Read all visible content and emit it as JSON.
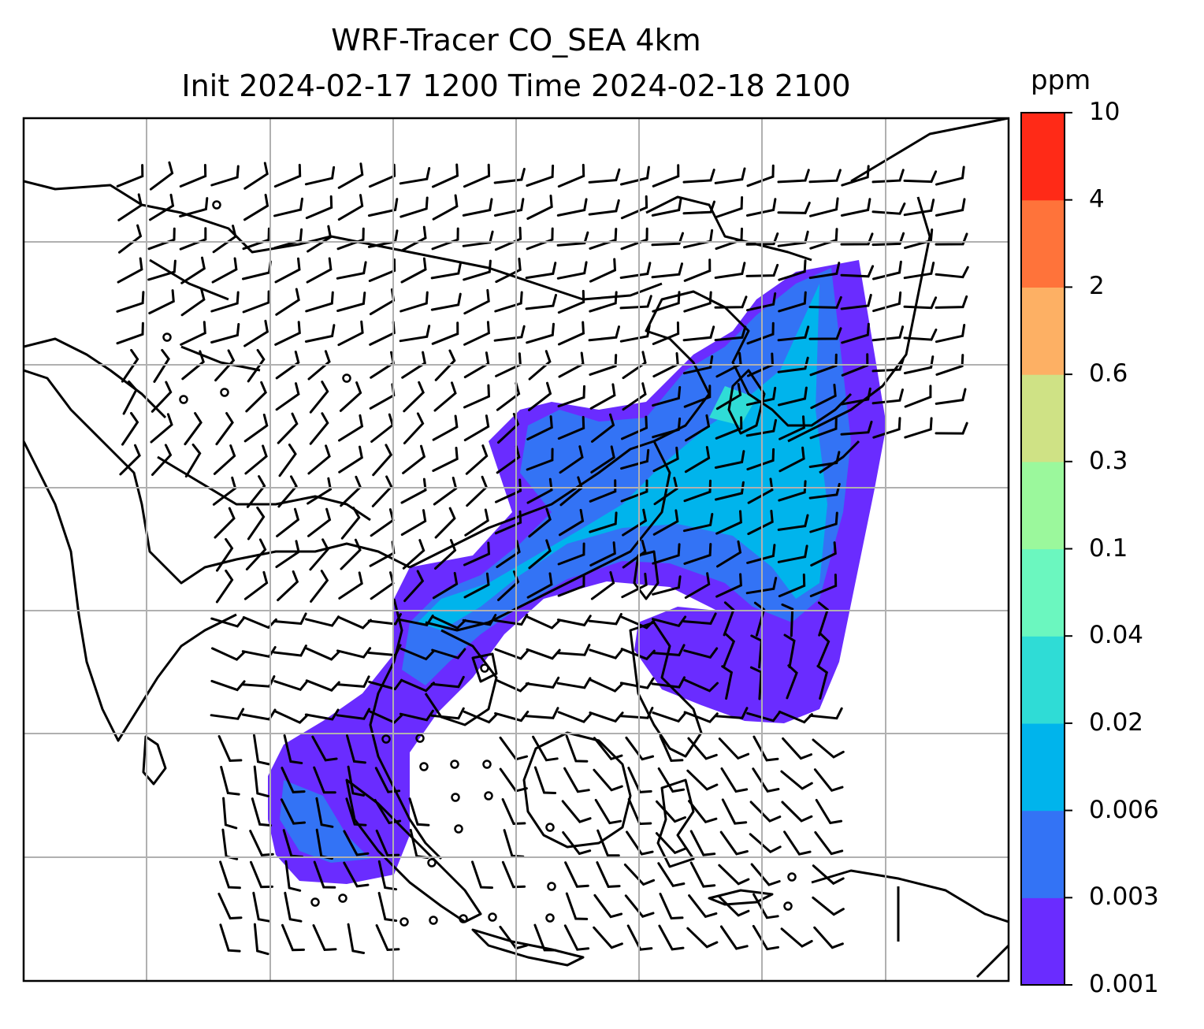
{
  "title": {
    "line1": "WRF-Tracer CO_SEA 4km",
    "line2": "Init 2024-02-17 1200 Time 2024-02-18 2100"
  },
  "colorbar": {
    "unit": "ppm",
    "levels": [
      "0.001",
      "0.003",
      "0.006",
      "0.02",
      "0.04",
      "0.1",
      "0.3",
      "0.6",
      "2",
      "4",
      "10"
    ],
    "colors": [
      "#6a2cff",
      "#3373f5",
      "#00b4ec",
      "#2fdcd6",
      "#6bf7bf",
      "#9bf89c",
      "#cfe285",
      "#fdb064",
      "#ff733a",
      "#ff2a17"
    ]
  },
  "map": {
    "plume_colors": {
      "light": "#6a2cff",
      "mid": "#3373f5",
      "core": "#00b4ec",
      "peak": "#2fdcd6"
    },
    "coast_color": "#000000",
    "grid_color": "#b0b0b0"
  }
}
